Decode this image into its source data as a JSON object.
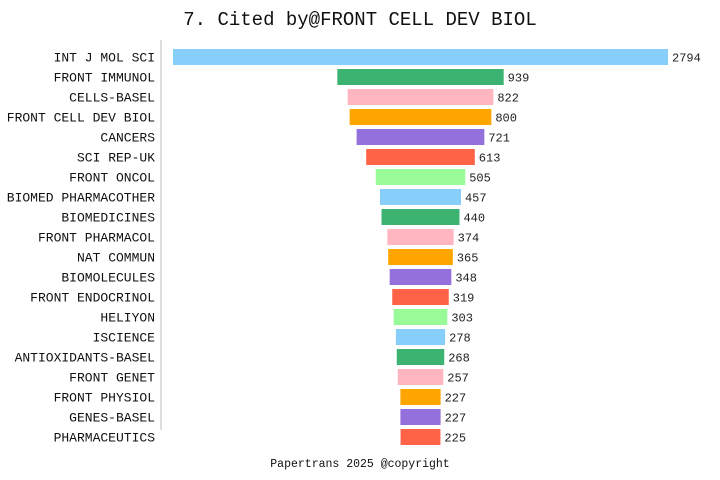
{
  "chart_data": {
    "type": "bar",
    "orientation": "horizontal-centered",
    "title": "7. Cited by@FRONT CELL DEV BIOL",
    "footer": "Papertrans 2025 @copyright",
    "categories": [
      "INT J MOL SCI",
      "FRONT IMMUNOL",
      "CELLS-BASEL",
      "FRONT CELL DEV BIOL",
      "CANCERS",
      "SCI REP-UK",
      "FRONT ONCOL",
      "BIOMED PHARMACOTHER",
      "BIOMEDICINES",
      "FRONT PHARMACOL",
      "NAT COMMUN",
      "BIOMOLECULES",
      "FRONT ENDOCRINOL",
      "HELIYON",
      "ISCIENCE",
      "ANTIOXIDANTS-BASEL",
      "FRONT GENET",
      "FRONT PHYSIOL",
      "GENES-BASEL",
      "PHARMACEUTICS"
    ],
    "values": [
      2794,
      939,
      822,
      800,
      721,
      613,
      505,
      457,
      440,
      374,
      365,
      348,
      319,
      303,
      278,
      268,
      257,
      227,
      227,
      225
    ],
    "colors": [
      "#87CEFA",
      "#3CB371",
      "#FFB6C1",
      "#FFA500",
      "#9370DB",
      "#FF6347",
      "#98FB98"
    ],
    "grid": false,
    "legend": "none"
  }
}
